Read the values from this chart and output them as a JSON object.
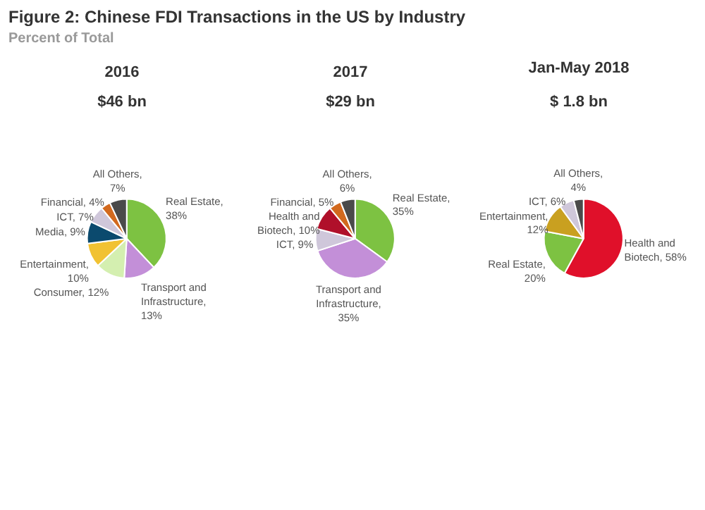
{
  "chart_data": [
    {
      "type": "pie",
      "title": "2016",
      "subtitle": "$46 bn",
      "annotations": [
        "Figure 2: Chinese FDI Transactions in the US by Industry",
        "Percent of Total"
      ],
      "categories": [
        "Real Estate, 38%",
        "Transport and Infrastructure, 13%",
        "Consumer, 12%",
        "Entertainment, 10%",
        "Media, 9%",
        "ICT, 7%",
        "Financial, 4%",
        "All Others, 7%"
      ],
      "values": [
        38,
        13,
        12,
        10,
        9,
        7,
        4,
        7
      ],
      "colors": [
        "#7dc242",
        "#c38fd8",
        "#d4efb0",
        "#f1c232",
        "#0b4a6e",
        "#cfc7da",
        "#d2691e",
        "#4a4a4a"
      ]
    },
    {
      "type": "pie",
      "title": "2017",
      "subtitle": "$29 bn",
      "categories": [
        "Real Estate, 35%",
        "Transport and Infrastructure, 35%",
        "ICT, 9%",
        "Health and Biotech, 10%",
        "Financial, 5%",
        "All Others, 6%"
      ],
      "values": [
        35,
        35,
        9,
        10,
        5,
        6
      ],
      "colors": [
        "#7dc242",
        "#c38fd8",
        "#cfc7da",
        "#b0102a",
        "#d2691e",
        "#4a4a4a"
      ]
    },
    {
      "type": "pie",
      "title": "Jan-May 2018",
      "subtitle": "$ 1.8 bn",
      "categories": [
        "Health and Biotech, 58%",
        "Real Estate, 20%",
        "Entertainment, 12%",
        "ICT, 6%",
        "All Others, 4%"
      ],
      "values": [
        58,
        20,
        12,
        6,
        4
      ],
      "colors": [
        "#e0102a",
        "#7dc242",
        "#c9a020",
        "#cfc7da",
        "#4a4a4a"
      ]
    }
  ]
}
